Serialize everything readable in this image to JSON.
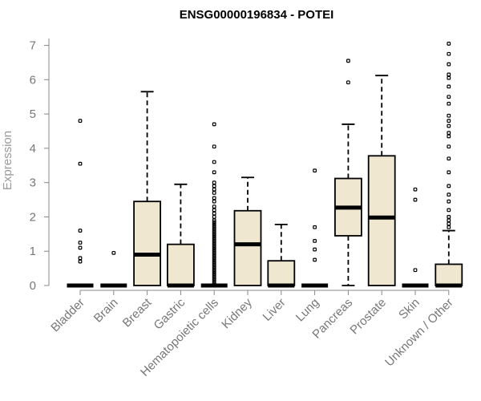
{
  "chart_data": {
    "type": "box",
    "title": "ENSG00000196834 - POTEI",
    "ylabel": "Expression",
    "xlabel": "",
    "ylim": [
      0,
      7.2
    ],
    "yticks": [
      0,
      1,
      2,
      3,
      4,
      5,
      6,
      7
    ],
    "box_color": "#efe7cf",
    "categories": [
      "Bladder",
      "Brain",
      "Breast",
      "Gastric",
      "Hematopoietic cells",
      "Kidney",
      "Liver",
      "Lung",
      "Pancreas",
      "Prostate",
      "Skin",
      "Unknown / Other"
    ],
    "boxes": [
      {
        "category": "Bladder",
        "min": 0,
        "q1": 0,
        "median": 0,
        "q3": 0,
        "max": 0,
        "outliers": [
          0.7,
          0.8,
          1.1,
          1.25,
          1.6,
          3.55,
          4.8
        ]
      },
      {
        "category": "Brain",
        "min": 0,
        "q1": 0,
        "median": 0,
        "q3": 0,
        "max": 0,
        "outliers": [
          0.95
        ]
      },
      {
        "category": "Breast",
        "min": 0,
        "q1": 0,
        "median": 0.9,
        "q3": 2.45,
        "max": 5.65,
        "outliers": []
      },
      {
        "category": "Gastric",
        "min": 0,
        "q1": 0,
        "median": 0,
        "q3": 1.2,
        "max": 2.95,
        "outliers": []
      },
      {
        "category": "Hematopoietic cells",
        "min": 0,
        "q1": 0,
        "median": 0,
        "q3": 0,
        "max": 0,
        "outliers": [
          0.05,
          0.1,
          0.15,
          0.2,
          0.25,
          0.3,
          0.35,
          0.4,
          0.45,
          0.5,
          0.55,
          0.6,
          0.65,
          0.7,
          0.75,
          0.8,
          0.85,
          0.9,
          0.95,
          1.0,
          1.05,
          1.1,
          1.15,
          1.2,
          1.25,
          1.3,
          1.35,
          1.4,
          1.45,
          1.5,
          1.55,
          1.6,
          1.65,
          1.7,
          1.75,
          1.8,
          1.85,
          1.9,
          2.0,
          2.1,
          2.2,
          2.3,
          2.45,
          2.55,
          2.7,
          2.8,
          2.9,
          3.0,
          3.3,
          3.6,
          4.05,
          4.7
        ]
      },
      {
        "category": "Kidney",
        "min": 0,
        "q1": 0,
        "median": 1.2,
        "q3": 2.18,
        "max": 3.15,
        "outliers": []
      },
      {
        "category": "Liver",
        "min": 0,
        "q1": 0,
        "median": 0,
        "q3": 0.72,
        "max": 1.78,
        "outliers": []
      },
      {
        "category": "Lung",
        "min": 0,
        "q1": 0,
        "median": 0,
        "q3": 0,
        "max": 0,
        "outliers": [
          0.75,
          1.05,
          1.3,
          1.7,
          3.35
        ]
      },
      {
        "category": "Pancreas",
        "min": 0,
        "q1": 1.45,
        "median": 2.27,
        "q3": 3.12,
        "max": 4.7,
        "outliers": [
          5.92,
          6.55
        ]
      },
      {
        "category": "Prostate",
        "min": 0,
        "q1": 0,
        "median": 1.98,
        "q3": 3.78,
        "max": 6.12,
        "outliers": []
      },
      {
        "category": "Skin",
        "min": 0,
        "q1": 0,
        "median": 0,
        "q3": 0,
        "max": 0,
        "outliers": [
          0.45,
          2.5,
          2.8
        ]
      },
      {
        "category": "Unknown / Other",
        "min": 0,
        "q1": 0,
        "median": 0,
        "q3": 0.62,
        "max": 1.6,
        "outliers": [
          1.7,
          1.8,
          1.9,
          2.0,
          2.2,
          2.45,
          2.65,
          2.9,
          3.3,
          3.7,
          4.05,
          4.35,
          4.45,
          4.65,
          4.8,
          4.95,
          5.3,
          5.5,
          5.8,
          6.05,
          6.15,
          6.45,
          6.75,
          7.05
        ]
      }
    ],
    "grid": false,
    "legend": "none"
  }
}
